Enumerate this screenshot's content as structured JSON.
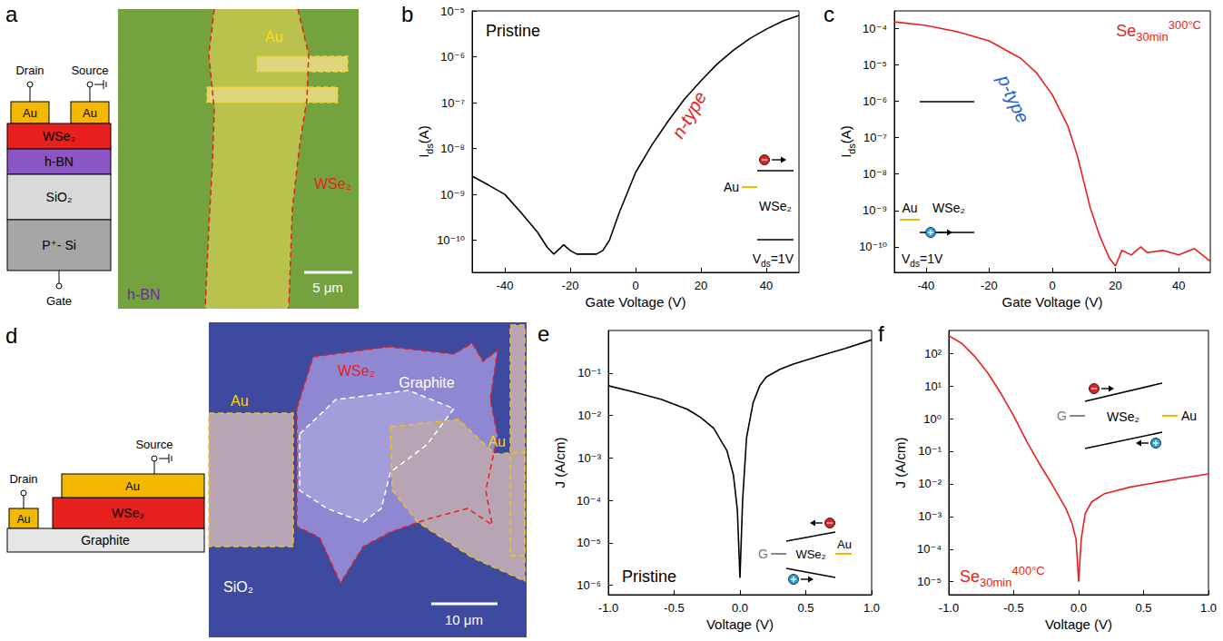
{
  "panels": {
    "a": {
      "letter": "a",
      "schematic": {
        "drain": "Drain",
        "source": "Source",
        "gate": "Gate",
        "contacts": [
          "Au",
          "Au"
        ],
        "layers": [
          "WSe₂",
          "h-BN",
          "SiO₂",
          "P⁺- Si"
        ]
      },
      "image": {
        "labels": [
          "Au",
          "WSe₂",
          "h-BN"
        ],
        "scale_bar": "5 μm"
      }
    },
    "d": {
      "letter": "d",
      "schematic": {
        "drain": "Drain",
        "source": "Source",
        "contacts": [
          "Au",
          "Au"
        ],
        "layers": [
          "WSe₂",
          "Graphite"
        ]
      },
      "image": {
        "labels": [
          "WSe₂",
          "Graphite",
          "Au",
          "Au",
          "SiO₂"
        ],
        "scale_bar": "10 μm"
      }
    }
  },
  "chart_data": [
    {
      "letter": "b",
      "type": "line",
      "title": "Pristine",
      "x": [
        -50,
        -45,
        -40,
        -35,
        -30,
        -27,
        -25,
        -22,
        -20,
        -18,
        -15,
        -12,
        -10,
        -8,
        -5,
        0,
        5,
        10,
        15,
        20,
        25,
        30,
        35,
        40,
        45,
        50
      ],
      "series": [
        {
          "color": "#000000",
          "values": [
            2.5e-09,
            1.6e-09,
            1e-09,
            4e-10,
            1.5e-10,
            7e-11,
            5e-11,
            8e-11,
            6e-11,
            5e-11,
            5e-11,
            5e-11,
            6e-11,
            1e-10,
            4e-10,
            3e-09,
            1.2e-08,
            4e-08,
            1.2e-07,
            3e-07,
            7e-07,
            1.4e-06,
            2.5e-06,
            4e-06,
            6e-06,
            8e-06
          ]
        }
      ],
      "xlim": [
        -50,
        50
      ],
      "xticks": [
        -40,
        -20,
        0,
        20,
        40
      ],
      "ylim": [
        2e-11,
        1e-05
      ],
      "yticks": [
        {
          "value": 1e-10,
          "label": "10⁻¹⁰"
        },
        {
          "value": 1e-09,
          "label": "10⁻⁹"
        },
        {
          "value": 1e-08,
          "label": "10⁻⁸"
        },
        {
          "value": 1e-07,
          "label": "10⁻⁷"
        },
        {
          "value": 1e-06,
          "label": "10⁻⁶"
        },
        {
          "value": 1e-05,
          "label": "10⁻⁵"
        }
      ],
      "log": "y",
      "grid": false,
      "x_label": "Gate Voltage (V)",
      "y_label": [
        "I",
        {
          "sub": "ds"
        },
        "(A)"
      ],
      "annotations": {
        "type_label": {
          "text": "n-type",
          "color": "#e8201d"
        },
        "metal": "Au",
        "semiconductor": "WSe₂",
        "bias": [
          "V",
          {
            "sub": "ds"
          },
          "=1V"
        ]
      }
    },
    {
      "letter": "c",
      "type": "line",
      "title": [
        "Se",
        {
          "sub": "30min"
        },
        {
          "sup": "300°C"
        }
      ],
      "x": [
        -50,
        -40,
        -30,
        -20,
        -10,
        -5,
        0,
        5,
        8,
        10,
        12,
        15,
        18,
        20,
        22,
        25,
        28,
        30,
        35,
        40,
        45,
        50
      ],
      "series": [
        {
          "color": "#e8201d",
          "values": [
            0.00015,
            0.00012,
            8e-05,
            4.5e-05,
            1.5e-05,
            6e-06,
            1.5e-06,
            2e-07,
            3e-08,
            6e-09,
            1.2e-09,
            2e-10,
            5e-11,
            3e-11,
            8e-11,
            6e-11,
            1e-10,
            7e-11,
            8e-11,
            6e-11,
            9e-11,
            4e-11
          ]
        }
      ],
      "xlim": [
        -50,
        50
      ],
      "xticks": [
        -40,
        -20,
        0,
        20,
        40
      ],
      "ylim": [
        2e-11,
        0.0003
      ],
      "yticks": [
        {
          "value": 1e-10,
          "label": "10⁻¹⁰"
        },
        {
          "value": 1e-09,
          "label": "10⁻⁹"
        },
        {
          "value": 1e-08,
          "label": "10⁻⁸"
        },
        {
          "value": 1e-07,
          "label": "10⁻⁷"
        },
        {
          "value": 1e-06,
          "label": "10⁻⁶"
        },
        {
          "value": 1e-05,
          "label": "10⁻⁵"
        },
        {
          "value": 0.0001,
          "label": "10⁻⁴"
        }
      ],
      "log": "y",
      "grid": false,
      "x_label": "Gate Voltage (V)",
      "y_label": [
        "I",
        {
          "sub": "ds"
        },
        "(A)"
      ],
      "annotations": {
        "type_label": {
          "text": "p-type",
          "color": "#1f5fd6"
        },
        "metal": "Au",
        "semiconductor": "WSe₂",
        "bias": [
          "V",
          {
            "sub": "ds"
          },
          "=1V"
        ]
      }
    },
    {
      "letter": "e",
      "type": "line",
      "title": "Pristine",
      "x": [
        -1,
        -0.8,
        -0.6,
        -0.4,
        -0.3,
        -0.2,
        -0.1,
        -0.05,
        -0.02,
        0,
        0.02,
        0.05,
        0.1,
        0.15,
        0.2,
        0.3,
        0.4,
        0.6,
        0.8,
        1
      ],
      "series": [
        {
          "color": "#000000",
          "values": [
            0.05,
            0.035,
            0.024,
            0.014,
            0.009,
            0.005,
            0.0015,
            0.0004,
            6e-05,
            1.5e-06,
            0.0001,
            0.003,
            0.02,
            0.05,
            0.08,
            0.12,
            0.16,
            0.25,
            0.38,
            0.6
          ]
        }
      ],
      "xlim": [
        -1,
        1
      ],
      "xticks": [
        {
          "value": -1,
          "label": "-1.0"
        },
        -0.5,
        {
          "value": 0,
          "label": "0.0"
        },
        0.5,
        {
          "value": 1,
          "label": "1.0"
        }
      ],
      "ylim": [
        6e-07,
        1
      ],
      "yticks": [
        {
          "value": 1e-06,
          "label": "10⁻⁶"
        },
        {
          "value": 1e-05,
          "label": "10⁻⁵"
        },
        {
          "value": 0.0001,
          "label": "10⁻⁴"
        },
        {
          "value": 0.001,
          "label": "10⁻³"
        },
        {
          "value": 0.01,
          "label": "10⁻²"
        },
        {
          "value": 0.1,
          "label": "10⁻¹"
        }
      ],
      "log": "y",
      "grid": false,
      "x_label": "Voltage (V)",
      "y_label": "J (A/cm)",
      "annotations": {
        "contact_left": "G",
        "semiconductor": "WSe₂",
        "metal": "Au"
      }
    },
    {
      "letter": "f",
      "type": "line",
      "title": [
        "Se",
        {
          "sub": "30min"
        },
        {
          "sup": "400°C"
        }
      ],
      "x": [
        -1,
        -0.9,
        -0.8,
        -0.7,
        -0.6,
        -0.5,
        -0.4,
        -0.3,
        -0.2,
        -0.1,
        -0.05,
        -0.02,
        0,
        0.02,
        0.05,
        0.1,
        0.2,
        0.4,
        0.6,
        0.8,
        1
      ],
      "series": [
        {
          "color": "#e8201d",
          "values": [
            350,
            200,
            80,
            25,
            6,
            1.2,
            0.2,
            0.04,
            0.009,
            0.0018,
            0.0006,
            0.0002,
            1e-05,
            0.0002,
            0.0012,
            0.0028,
            0.005,
            0.008,
            0.011,
            0.015,
            0.02
          ]
        }
      ],
      "xlim": [
        -1,
        1
      ],
      "xticks": [
        {
          "value": -1,
          "label": "-1.0"
        },
        -0.5,
        {
          "value": 0,
          "label": "0.0"
        },
        0.5,
        {
          "value": 1,
          "label": "1.0"
        }
      ],
      "ylim": [
        4e-06,
        500
      ],
      "yticks": [
        {
          "value": 1e-05,
          "label": "10⁻⁵"
        },
        {
          "value": 0.0001,
          "label": "10⁻⁴"
        },
        {
          "value": 0.001,
          "label": "10⁻³"
        },
        {
          "value": 0.01,
          "label": "10⁻²"
        },
        {
          "value": 0.1,
          "label": "10⁻¹"
        },
        {
          "value": 1,
          "label": "10⁰"
        },
        {
          "value": 10,
          "label": "10¹"
        },
        {
          "value": 100,
          "label": "10²"
        }
      ],
      "log": "y",
      "grid": false,
      "x_label": "Voltage (V)",
      "y_label": "J (A/cm)",
      "annotations": {
        "contact_left": "G",
        "semiconductor": "WSe₂",
        "metal": "Au"
      }
    }
  ]
}
